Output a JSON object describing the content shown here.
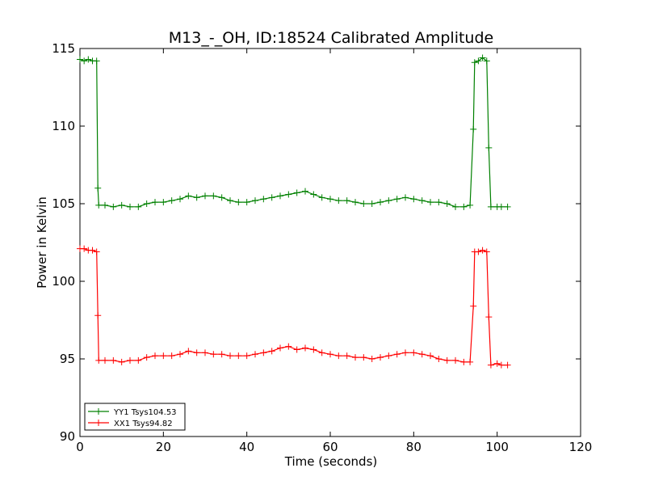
{
  "chart_data": {
    "type": "line",
    "title": "M13_-_OH, ID:18524 Calibrated Amplitude",
    "xlabel": "Time (seconds)",
    "ylabel": "Power in Kelvin",
    "xlim": [
      0,
      120
    ],
    "ylim": [
      90,
      115
    ],
    "xticks": [
      0,
      20,
      40,
      60,
      80,
      100,
      120
    ],
    "yticks": [
      90,
      95,
      100,
      105,
      110,
      115
    ],
    "grid": false,
    "legend_position": "lower-left",
    "series": [
      {
        "name": "YY1 Tsys104.53",
        "color": "#008000",
        "marker": "+",
        "points": [
          [
            0,
            114.3
          ],
          [
            1,
            114.2
          ],
          [
            2,
            114.3
          ],
          [
            3,
            114.2
          ],
          [
            4,
            114.2
          ],
          [
            4.3,
            106.0
          ],
          [
            4.5,
            104.9
          ],
          [
            6,
            104.9
          ],
          [
            8,
            104.8
          ],
          [
            10,
            104.9
          ],
          [
            12,
            104.8
          ],
          [
            14,
            104.8
          ],
          [
            16,
            105.0
          ],
          [
            18,
            105.1
          ],
          [
            20,
            105.1
          ],
          [
            22,
            105.2
          ],
          [
            24,
            105.3
          ],
          [
            26,
            105.5
          ],
          [
            28,
            105.4
          ],
          [
            30,
            105.5
          ],
          [
            32,
            105.5
          ],
          [
            34,
            105.4
          ],
          [
            36,
            105.2
          ],
          [
            38,
            105.1
          ],
          [
            40,
            105.1
          ],
          [
            42,
            105.2
          ],
          [
            44,
            105.3
          ],
          [
            46,
            105.4
          ],
          [
            48,
            105.5
          ],
          [
            50,
            105.6
          ],
          [
            52,
            105.7
          ],
          [
            54,
            105.8
          ],
          [
            56,
            105.6
          ],
          [
            58,
            105.4
          ],
          [
            60,
            105.3
          ],
          [
            62,
            105.2
          ],
          [
            64,
            105.2
          ],
          [
            66,
            105.1
          ],
          [
            68,
            105.0
          ],
          [
            70,
            105.0
          ],
          [
            72,
            105.1
          ],
          [
            74,
            105.2
          ],
          [
            76,
            105.3
          ],
          [
            78,
            105.4
          ],
          [
            80,
            105.3
          ],
          [
            82,
            105.2
          ],
          [
            84,
            105.1
          ],
          [
            86,
            105.1
          ],
          [
            88,
            105.0
          ],
          [
            90,
            104.8
          ],
          [
            92,
            104.8
          ],
          [
            93.5,
            104.9
          ],
          [
            94.3,
            109.8
          ],
          [
            94.6,
            114.1
          ],
          [
            95.5,
            114.2
          ],
          [
            96.5,
            114.4
          ],
          [
            97.5,
            114.2
          ],
          [
            98.0,
            108.6
          ],
          [
            98.5,
            104.8
          ],
          [
            100,
            104.8
          ],
          [
            101,
            104.8
          ],
          [
            102.5,
            104.8
          ]
        ]
      },
      {
        "name": "XX1 Tsys94.82",
        "color": "#ff0000",
        "marker": "+",
        "points": [
          [
            0,
            102.1
          ],
          [
            1,
            102.1
          ],
          [
            2,
            102.0
          ],
          [
            3,
            102.0
          ],
          [
            4,
            101.9
          ],
          [
            4.3,
            97.8
          ],
          [
            4.5,
            94.9
          ],
          [
            6,
            94.9
          ],
          [
            8,
            94.9
          ],
          [
            10,
            94.8
          ],
          [
            12,
            94.9
          ],
          [
            14,
            94.9
          ],
          [
            16,
            95.1
          ],
          [
            18,
            95.2
          ],
          [
            20,
            95.2
          ],
          [
            22,
            95.2
          ],
          [
            24,
            95.3
          ],
          [
            26,
            95.5
          ],
          [
            28,
            95.4
          ],
          [
            30,
            95.4
          ],
          [
            32,
            95.3
          ],
          [
            34,
            95.3
          ],
          [
            36,
            95.2
          ],
          [
            38,
            95.2
          ],
          [
            40,
            95.2
          ],
          [
            42,
            95.3
          ],
          [
            44,
            95.4
          ],
          [
            46,
            95.5
          ],
          [
            48,
            95.7
          ],
          [
            50,
            95.8
          ],
          [
            52,
            95.6
          ],
          [
            54,
            95.7
          ],
          [
            56,
            95.6
          ],
          [
            58,
            95.4
          ],
          [
            60,
            95.3
          ],
          [
            62,
            95.2
          ],
          [
            64,
            95.2
          ],
          [
            66,
            95.1
          ],
          [
            68,
            95.1
          ],
          [
            70,
            95.0
          ],
          [
            72,
            95.1
          ],
          [
            74,
            95.2
          ],
          [
            76,
            95.3
          ],
          [
            78,
            95.4
          ],
          [
            80,
            95.4
          ],
          [
            82,
            95.3
          ],
          [
            84,
            95.2
          ],
          [
            86,
            95.0
          ],
          [
            88,
            94.9
          ],
          [
            90,
            94.9
          ],
          [
            92,
            94.8
          ],
          [
            93.5,
            94.8
          ],
          [
            94.3,
            98.4
          ],
          [
            94.6,
            101.9
          ],
          [
            95.5,
            101.9
          ],
          [
            96.5,
            102.0
          ],
          [
            97.5,
            101.9
          ],
          [
            98.0,
            97.7
          ],
          [
            98.5,
            94.6
          ],
          [
            100,
            94.7
          ],
          [
            101,
            94.6
          ],
          [
            102.5,
            94.6
          ]
        ]
      }
    ]
  }
}
